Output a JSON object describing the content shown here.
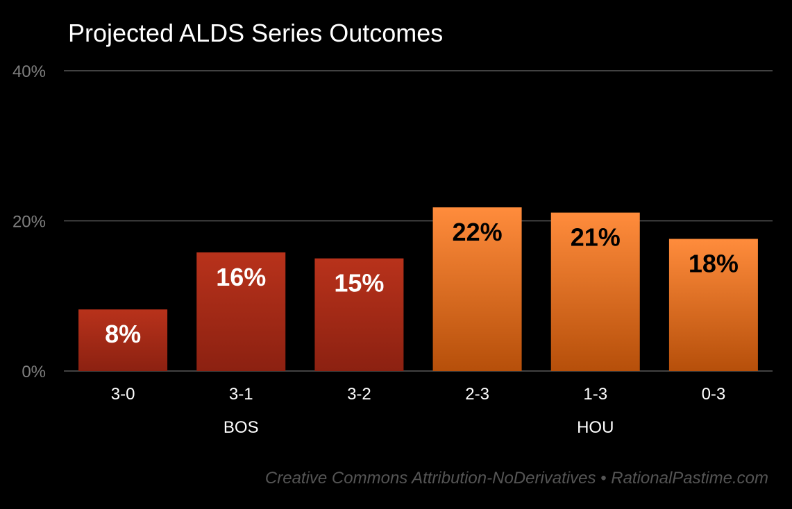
{
  "chart_data": {
    "type": "bar",
    "title": "Projected ALDS Series Outcomes",
    "categories": [
      "3-0",
      "3-1",
      "3-2",
      "2-3",
      "1-3",
      "0-3"
    ],
    "values": [
      8.2,
      15.8,
      15.0,
      21.8,
      21.1,
      17.6
    ],
    "data_labels": [
      "8%",
      "16%",
      "15%",
      "22%",
      "21%",
      "18%"
    ],
    "groups": [
      {
        "name": "BOS",
        "members": [
          "3-0",
          "3-1",
          "3-2"
        ],
        "color_top": "#b8321b",
        "color_bottom": "#8c2111",
        "label_color": "#ffffff"
      },
      {
        "name": "HOU",
        "members": [
          "2-3",
          "1-3",
          "0-3"
        ],
        "color_top": "#ff8c3c",
        "color_bottom": "#b64f0a",
        "label_color": "#000000"
      }
    ],
    "y_ticks": [
      0,
      20,
      40
    ],
    "y_tick_labels": [
      "0%",
      "20%",
      "40%"
    ],
    "ylim": [
      0,
      40
    ],
    "xlabel": "",
    "ylabel": "",
    "grid": true,
    "legend": "none"
  },
  "credit": "Creative Commons Attribution-NoDerivatives • RationalPastime.com",
  "colors": {
    "background": "#000000",
    "gridline": "#595959",
    "tick_label": "#7f7f7f",
    "title": "#ffffff",
    "credit": "#555555"
  }
}
